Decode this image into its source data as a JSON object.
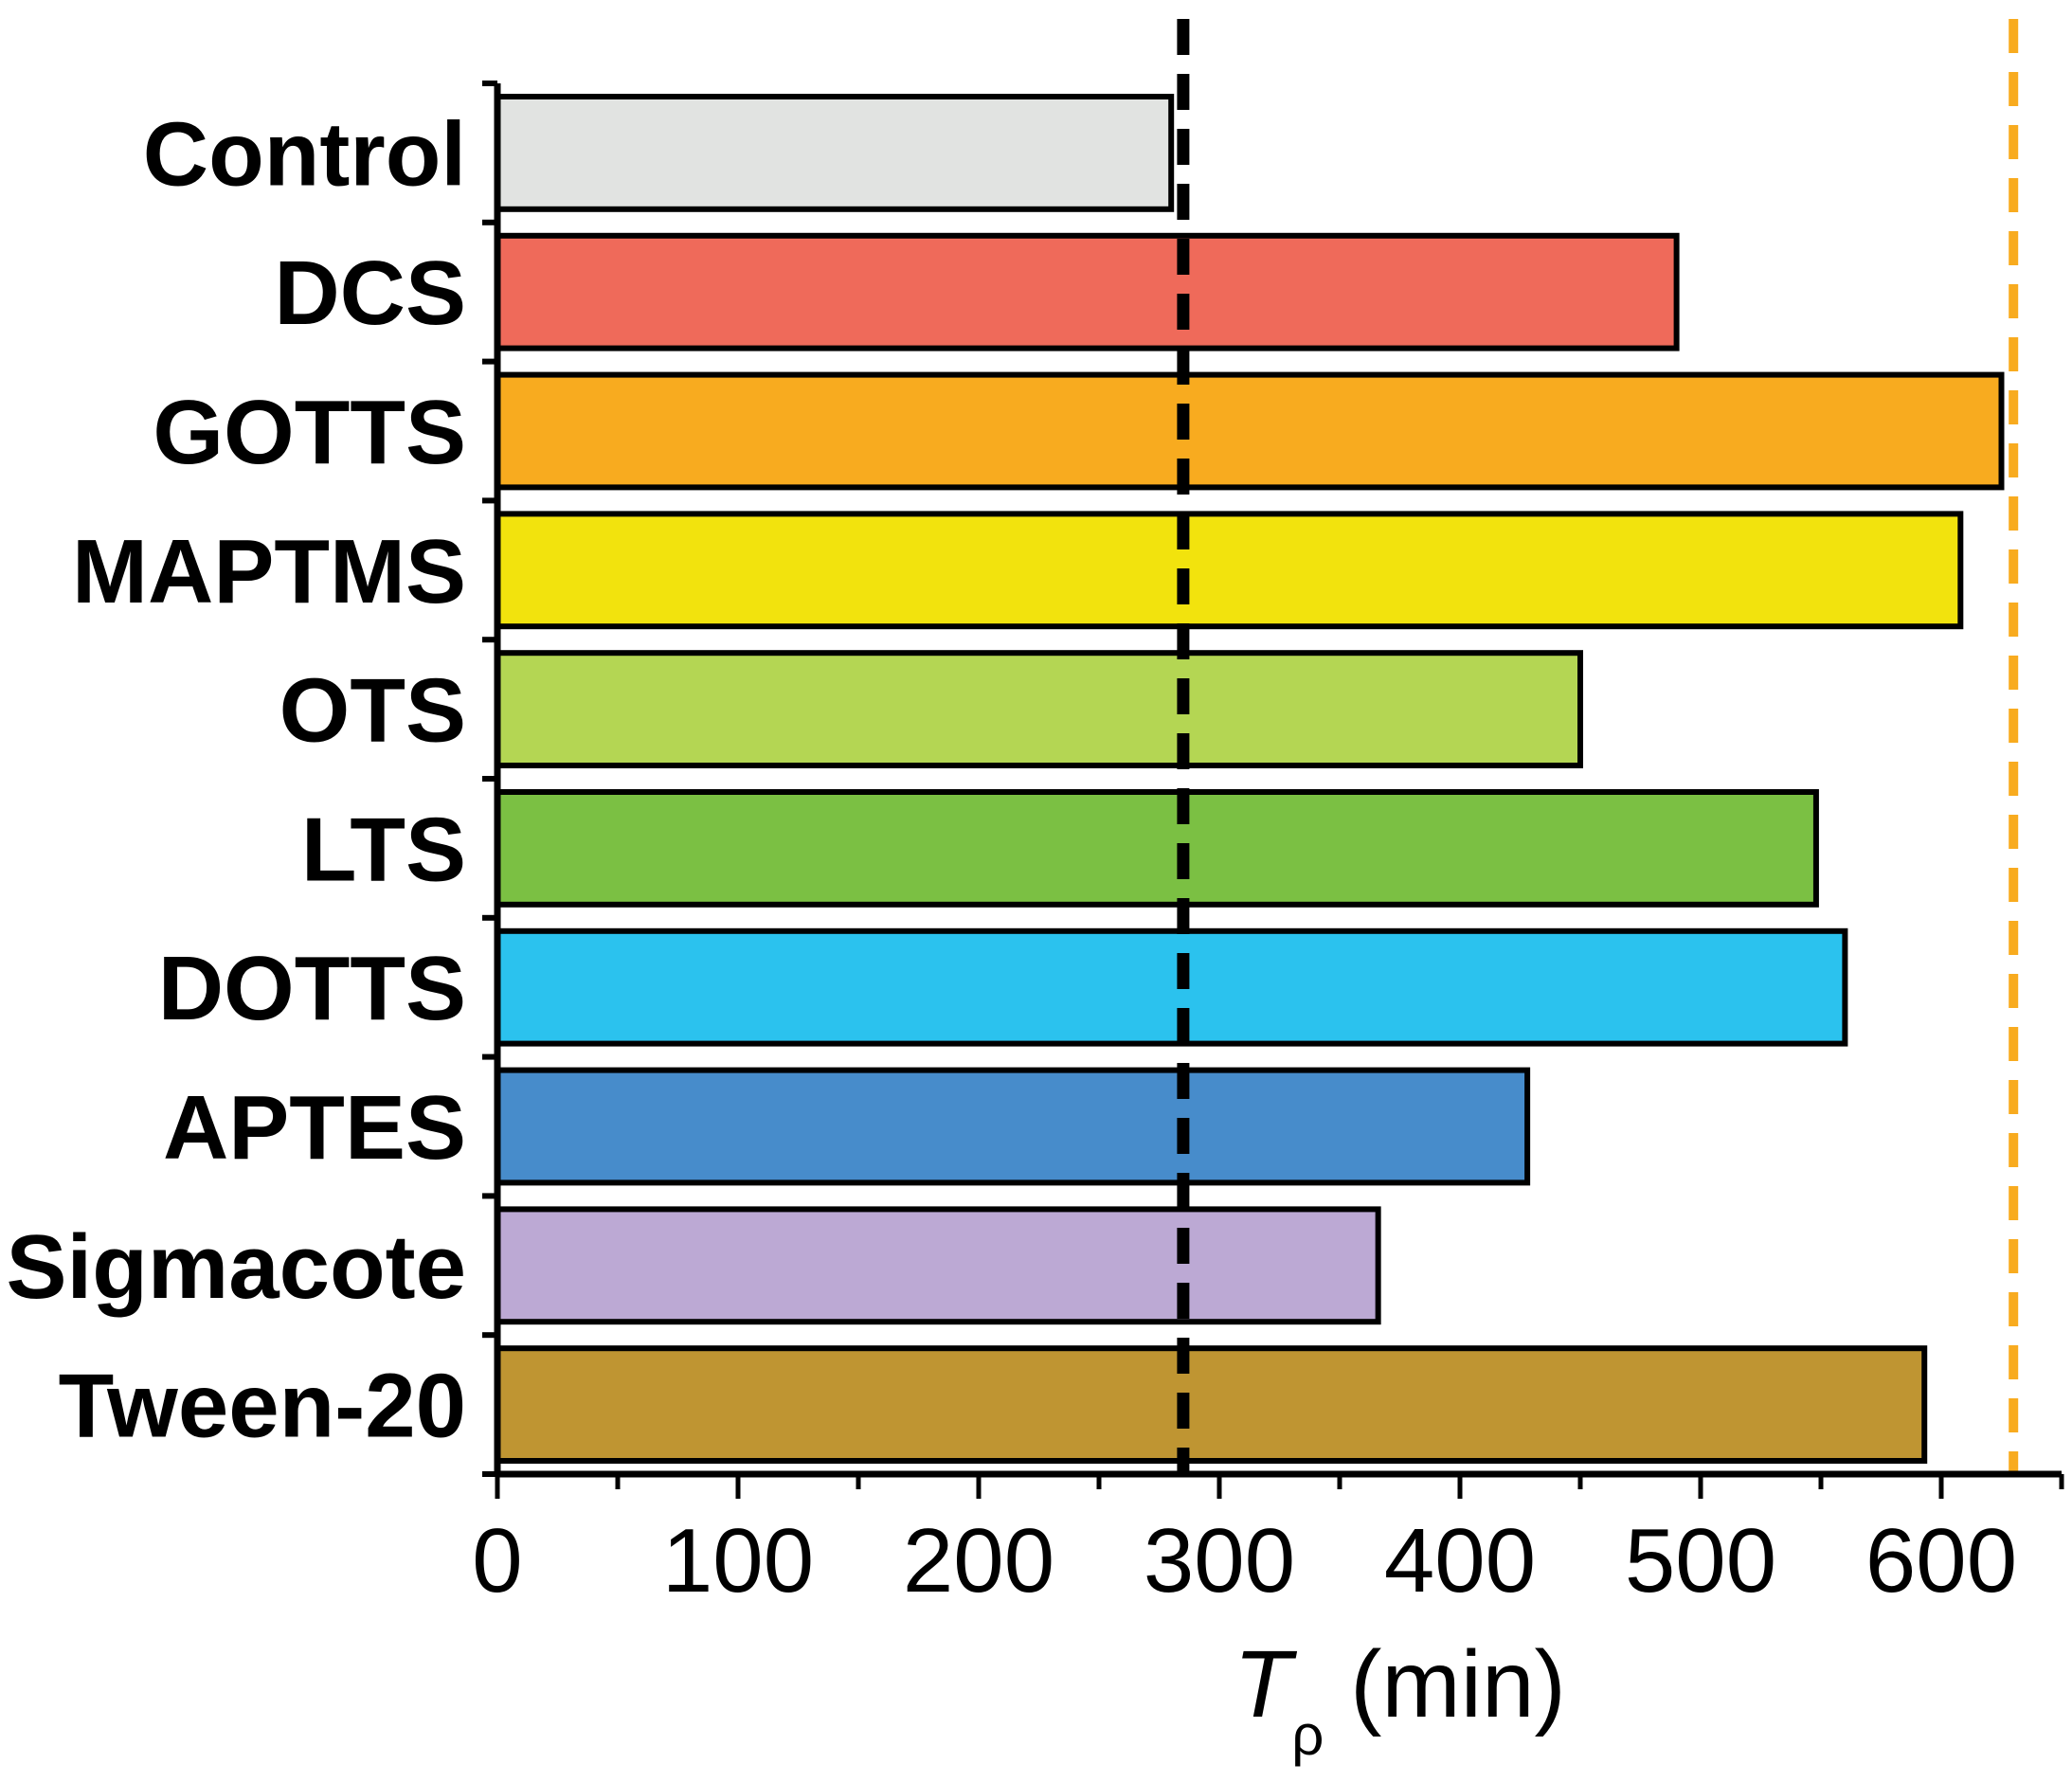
{
  "chart_data": {
    "type": "bar",
    "orientation": "horizontal",
    "title": "",
    "categories": [
      "Control",
      "DCS",
      "GOTTS",
      "MAPTMS",
      "OTS",
      "LTS",
      "DOTTS",
      "APTES",
      "Sigmacote",
      "Tween-20"
    ],
    "values": [
      280,
      490,
      625,
      608,
      450,
      548,
      560,
      428,
      366,
      593
    ],
    "colors": [
      "#e1e3e1",
      "#ef6a5a",
      "#f8ab1f",
      "#f2e30d",
      "#b4d653",
      "#7bc043",
      "#2bc2ee",
      "#478ccb",
      "#bca9d4",
      "#bf9532"
    ],
    "xlabel": {
      "symbol": "T",
      "subscript": "ρ",
      "unit": " (min)"
    },
    "ylabel": "",
    "xlim": [
      0,
      650
    ],
    "xticks": [
      0,
      100,
      200,
      300,
      400,
      500,
      600
    ],
    "reference_lines": [
      {
        "value": 285,
        "color": "#000000",
        "style": "dashed"
      },
      {
        "value": 630,
        "color": "#f8ab1f",
        "style": "dashed"
      }
    ],
    "grid": false,
    "legend": "none"
  }
}
